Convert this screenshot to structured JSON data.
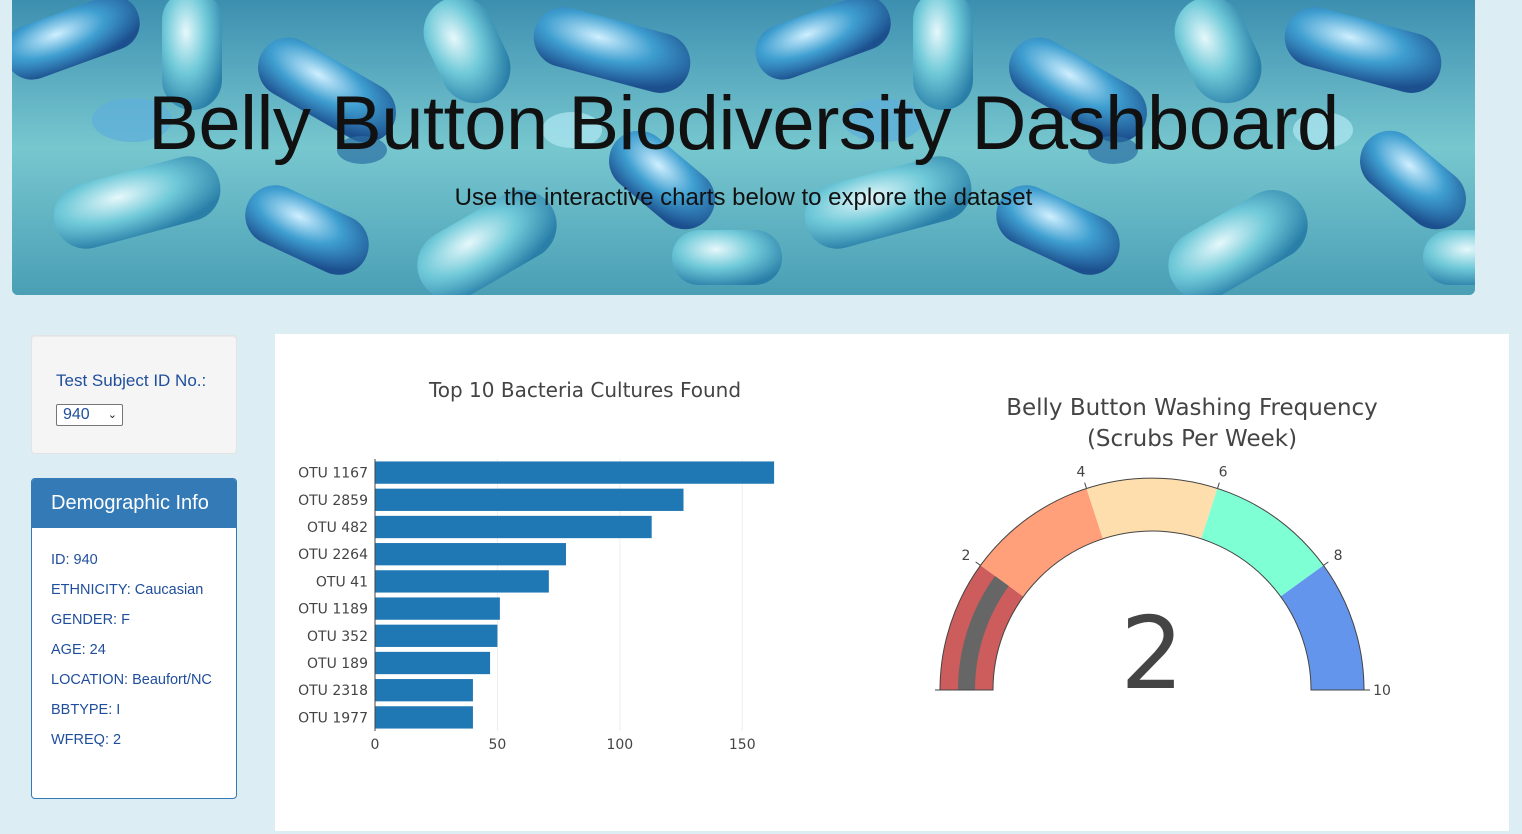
{
  "header": {
    "title": "Belly Button Biodiversity Dashboard",
    "subtitle": "Use the interactive charts below to explore the dataset"
  },
  "selector": {
    "label": "Test Subject ID No.:",
    "selected": "940"
  },
  "demographics": {
    "heading": "Demographic Info",
    "items": [
      "ID: 940",
      "ETHNICITY: Caucasian",
      "GENDER: F",
      "AGE: 24",
      "LOCATION: Beaufort/NC",
      "BBTYPE: I",
      "WFREQ: 2"
    ]
  },
  "colors": {
    "page_bg": "#dcedf3",
    "bar": "#1f77b4",
    "panel_primary": "#337ab7",
    "gauge_needle": "#666666"
  },
  "chart_data": [
    {
      "type": "bar",
      "orientation": "horizontal",
      "title": "Top 10 Bacteria Cultures Found",
      "categories": [
        "OTU 1167",
        "OTU 2859",
        "OTU 482",
        "OTU 2264",
        "OTU 41",
        "OTU 1189",
        "OTU 352",
        "OTU 189",
        "OTU 2318",
        "OTU 1977"
      ],
      "values": [
        163,
        126,
        113,
        78,
        71,
        51,
        50,
        47,
        40,
        40
      ],
      "xticks": [
        0,
        50,
        100,
        150
      ],
      "xlim": [
        0,
        165
      ],
      "grid": true
    },
    {
      "type": "gauge",
      "title": "Belly Button Washing Frequency",
      "subtitle": "(Scrubs Per Week)",
      "value": 2,
      "range": [
        0,
        10
      ],
      "ticks": [
        0,
        2,
        4,
        6,
        8,
        10
      ],
      "steps": [
        {
          "range": [
            0,
            2
          ],
          "color": "#cd5c5c"
        },
        {
          "range": [
            2,
            4
          ],
          "color": "#ffa07a"
        },
        {
          "range": [
            4,
            6
          ],
          "color": "#ffdead"
        },
        {
          "range": [
            6,
            8
          ],
          "color": "#7fffd4"
        },
        {
          "range": [
            8,
            10
          ],
          "color": "#6495ed"
        }
      ]
    }
  ]
}
